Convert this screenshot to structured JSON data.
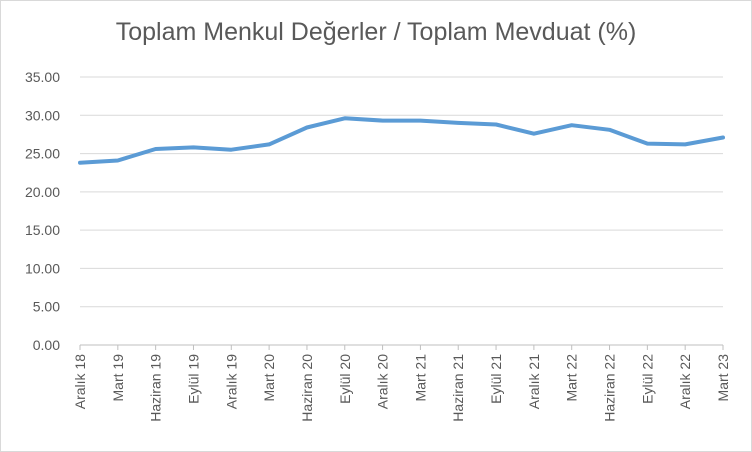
{
  "chart_data": {
    "type": "line",
    "title": "Toplam Menkul Değerler / Toplam Mevduat (%)",
    "categories": [
      "Aralık 18",
      "Mart 19",
      "Haziran 19",
      "Eylül 19",
      "Aralık 19",
      "Mart 20",
      "Haziran 20",
      "Eylül 20",
      "Aralık 20",
      "Mart 21",
      "Haziran 21",
      "Eylül 21",
      "Aralık 21",
      "Mart 22",
      "Haziran 22",
      "Eylül 22",
      "Aralık 22",
      "Mart 23"
    ],
    "series": [
      {
        "values": [
          23.8,
          24.1,
          25.6,
          25.8,
          25.5,
          26.2,
          28.4,
          29.6,
          29.3,
          29.3,
          29.0,
          28.8,
          27.6,
          28.7,
          28.1,
          26.3,
          26.2,
          27.1
        ],
        "color": "#5b9bd5"
      }
    ],
    "yticks": [
      "0.00",
      "5.00",
      "10.00",
      "15.00",
      "20.00",
      "25.00",
      "30.00",
      "35.00"
    ],
    "ylim": [
      0,
      35
    ],
    "grid": true,
    "xlabel": "",
    "ylabel": ""
  }
}
